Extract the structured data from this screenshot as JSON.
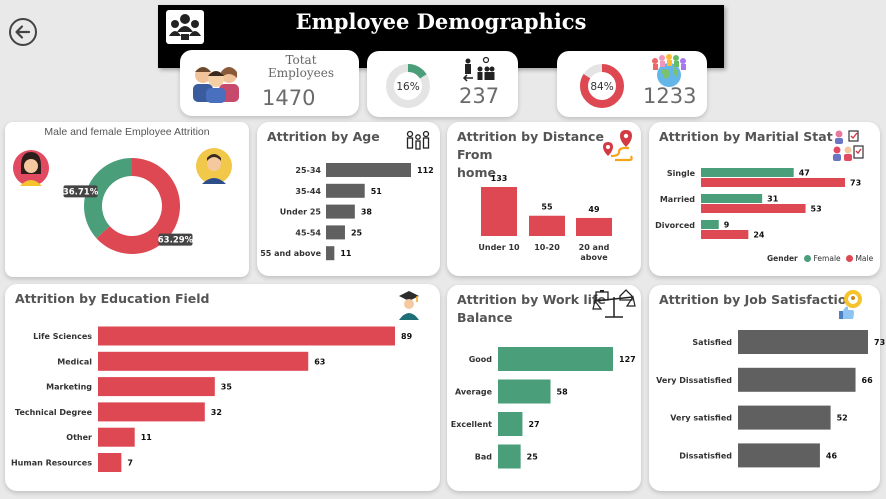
{
  "header": {
    "title": "Employee Demographics"
  },
  "kpis": {
    "total_label": "Totat\nEmployees",
    "total_value": "1470",
    "attrition_pct": "16%",
    "attrition_fraction": 0.16,
    "attrition_value": "237",
    "active_pct": "84%",
    "active_fraction": 0.84,
    "active_value": "1233"
  },
  "colors": {
    "green": "#4a9e7a",
    "red": "#dd4852",
    "gray": "#606060"
  },
  "gender_card": {
    "title": "Male and female Employee Attrition"
  },
  "age_card": {
    "title": "Attrition by Age"
  },
  "distance_card": {
    "title_line1": "Attrition by Distance From",
    "title_line2": "home"
  },
  "marital_card": {
    "title": "Attrition by Maritial Stat",
    "legend_title": "Gender",
    "legend_female": "Female",
    "legend_male": "Male"
  },
  "education_card": {
    "title": "Attrition by Education Field"
  },
  "worklife_card": {
    "title_line1": "Attrition by Work life",
    "title_line2": "Balance"
  },
  "jobsat_card": {
    "title": "Attrition by Job Satisfaction"
  },
  "chart_data": [
    {
      "id": "gender",
      "type": "pie",
      "categories": [
        "Female",
        "Male"
      ],
      "values": [
        36.71,
        63.29
      ],
      "labels": [
        "36.71%",
        "63.29%"
      ],
      "colors": [
        "#4a9e7a",
        "#dd4852"
      ]
    },
    {
      "id": "age",
      "type": "bar",
      "orientation": "horizontal",
      "categories": [
        "25-34",
        "35-44",
        "Under 25",
        "45-54",
        "55 and above"
      ],
      "values": [
        112,
        51,
        38,
        25,
        11
      ]
    },
    {
      "id": "distance",
      "type": "bar",
      "orientation": "vertical",
      "categories": [
        "Under 10",
        "10-20",
        "20 and above"
      ],
      "values": [
        133,
        55,
        49
      ]
    },
    {
      "id": "marital",
      "type": "bar",
      "orientation": "horizontal",
      "categories": [
        "Single",
        "Married",
        "Divorced"
      ],
      "series": [
        {
          "name": "Female",
          "values": [
            47,
            31,
            9
          ]
        },
        {
          "name": "Male",
          "values": [
            73,
            53,
            24
          ]
        }
      ]
    },
    {
      "id": "education",
      "type": "bar",
      "orientation": "horizontal",
      "categories": [
        "Life Sciences",
        "Medical",
        "Marketing",
        "Technical Degree",
        "Other",
        "Human Resources"
      ],
      "values": [
        89,
        63,
        35,
        32,
        11,
        7
      ]
    },
    {
      "id": "worklife",
      "type": "bar",
      "orientation": "horizontal",
      "categories": [
        "Good",
        "Average",
        "Excellent",
        "Bad"
      ],
      "values": [
        127,
        58,
        27,
        25
      ]
    },
    {
      "id": "jobsat",
      "type": "bar",
      "orientation": "horizontal",
      "categories": [
        "Satisfied",
        "Very Dissatisfied",
        "Very satisfied",
        "Dissatisfied"
      ],
      "values": [
        73,
        66,
        52,
        46
      ]
    }
  ]
}
